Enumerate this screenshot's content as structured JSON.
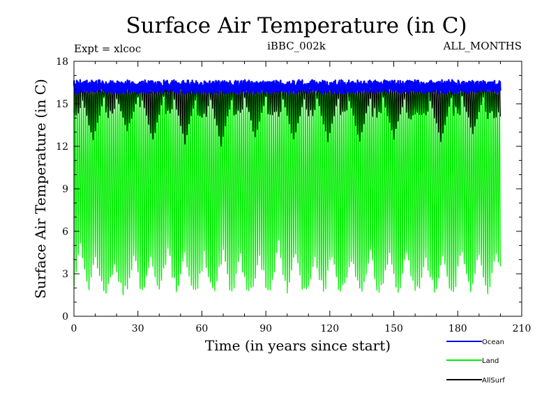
{
  "chart_data": {
    "type": "line",
    "title": "Surface Air Temperature (in C)",
    "subtitle_left": "Expt = xlcoc",
    "subtitle_center": "iBBC_002k",
    "subtitle_right": "ALL_MONTHS",
    "xlabel": "Time (in years since start)",
    "ylabel": "Surface Air Temperature (in C)",
    "xlim": [
      0,
      210
    ],
    "ylim": [
      0,
      18
    ],
    "xticks": [
      0,
      30,
      60,
      90,
      120,
      150,
      180,
      210
    ],
    "yticks": [
      0,
      3,
      6,
      9,
      12,
      15,
      18
    ],
    "x_start": 0,
    "x_end": 200,
    "grid": false,
    "legend_position": "bottom-right",
    "series": [
      {
        "name": "Land",
        "color": "#00ee00",
        "seasonal_max_typical": 16.0,
        "seasonal_min_typical": 1.8,
        "overall_min": 0.6,
        "overall_max": 16.3,
        "peak_min_years": [
          3,
          10,
          19,
          28,
          36,
          44,
          52,
          61,
          70,
          78,
          87,
          96,
          104,
          113,
          121,
          130,
          139,
          148,
          156,
          165,
          173,
          182,
          190,
          198
        ],
        "peak_max_values": [
          4.9,
          4.0,
          3.5,
          4.2,
          4.3,
          4.6,
          4.2,
          4.1,
          4.6,
          4.1,
          4.3,
          5.0,
          4.5,
          4.2,
          4.3,
          4.2,
          4.3,
          4.3,
          4.5,
          4.3,
          4.2,
          4.4,
          4.4,
          4.5
        ]
      },
      {
        "name": "AllSurf",
        "color": "#000000",
        "seasonal_max_typical": 16.0,
        "overall_max": 16.4,
        "dip_min_years": [
          9,
          25,
          37,
          52,
          69,
          85,
          103,
          119,
          134,
          150,
          172,
          187
        ],
        "dip_min_values": [
          12.4,
          13.0,
          12.3,
          12.1,
          12.0,
          12.6,
          12.4,
          12.3,
          12.3,
          12.5,
          12.3,
          12.9
        ]
      },
      {
        "name": "Ocean",
        "color": "#0000ff",
        "mean": 16.2,
        "min": 15.6,
        "max": 16.8
      }
    ],
    "legend": [
      {
        "name": "Ocean",
        "color": "#0000ff"
      },
      {
        "name": "Land",
        "color": "#00ee00"
      },
      {
        "name": "AllSurf",
        "color": "#000000"
      }
    ]
  }
}
